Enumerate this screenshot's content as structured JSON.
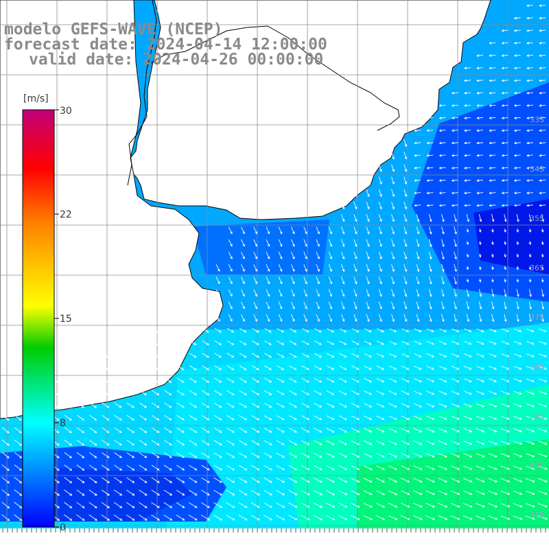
{
  "header": {
    "model": "modelo GEFS-WAVE (NCEP)",
    "forecast_date": "forecast date: 2024-04-14 12:00:00",
    "valid_date": "valid date: 2024-04-26 00:00:00"
  },
  "colorbar": {
    "unit": "[m/s]",
    "ticks": [
      "30",
      "22",
      "15",
      "8",
      "0"
    ],
    "colors": [
      "#c0007a",
      "#ff0000",
      "#ff8000",
      "#ffff00",
      "#00cc00",
      "#00ffff",
      "#0000ff"
    ]
  },
  "latitude_labels": [
    "33S",
    "34S",
    "35S",
    "36S",
    "37S",
    "38S",
    "39S",
    "40S",
    "41S"
  ],
  "field_colors": {
    "deep_blue": "#0010e0",
    "blue": "#0050ff",
    "light_blue": "#00a8ff",
    "cyan": "#00e8ff",
    "aqua_green": "#00ffb0",
    "green": "#00f070",
    "land": "#ffffff"
  },
  "icons": [
    "wind-arrow-icon"
  ]
}
